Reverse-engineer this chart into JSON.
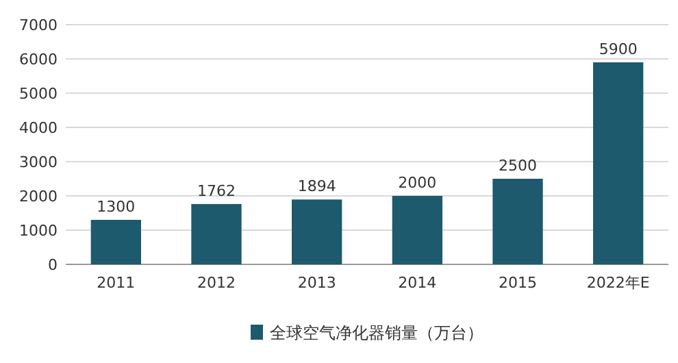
{
  "chart_data": {
    "type": "bar",
    "categories": [
      "2011",
      "2012",
      "2013",
      "2014",
      "2015",
      "2022年E"
    ],
    "series": [
      {
        "name": "全球空气净化器销量（万台）",
        "color": "#1d5a6e",
        "values": [
          1300,
          1762,
          1894,
          2000,
          2500,
          5900
        ]
      }
    ],
    "ylim": [
      0,
      7000
    ],
    "yticks": [
      0,
      1000,
      2000,
      3000,
      4000,
      5000,
      6000,
      7000
    ],
    "grid": "y",
    "legend": "bottom",
    "data_labels": true
  }
}
